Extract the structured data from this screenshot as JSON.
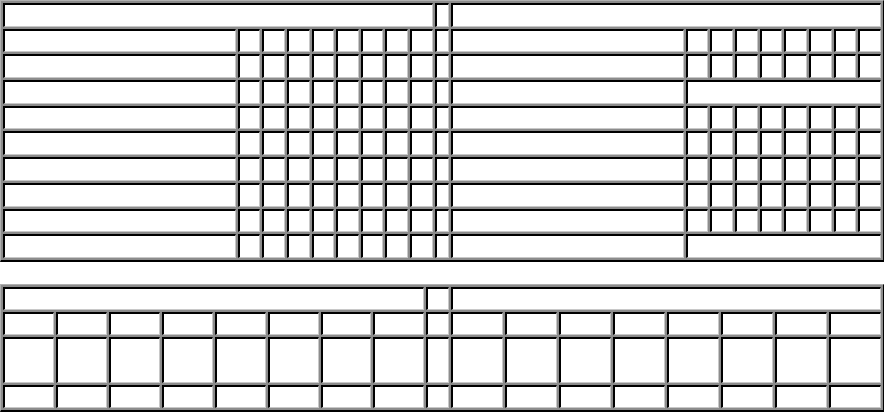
{
  "top_table": {
    "header": [
      "",
      "",
      ""
    ],
    "rows": [
      {
        "left_name": "",
        "left_cells": [
          "",
          "",
          "",
          "",
          "",
          "",
          "",
          ""
        ],
        "right_name": "",
        "right_cells": [
          "",
          "",
          "",
          "",
          "",
          "",
          "",
          ""
        ]
      },
      {
        "left_name": "",
        "left_cells": [
          "",
          "",
          "",
          "",
          "",
          "",
          "",
          ""
        ],
        "right_name": "",
        "right_cells": [
          "",
          "",
          "",
          "",
          "",
          "",
          "",
          ""
        ]
      },
      {
        "left_name": "",
        "left_cells": [
          "",
          "",
          "",
          "",
          "",
          "",
          "",
          ""
        ],
        "right_name": "",
        "right_merged": ""
      },
      {
        "left_name": "",
        "left_cells": [
          "",
          "",
          "",
          "",
          "",
          "",
          "",
          ""
        ],
        "right_name": "",
        "right_cells": [
          "",
          "",
          "",
          "",
          "",
          "",
          "",
          ""
        ]
      },
      {
        "left_name": "",
        "left_cells": [
          "",
          "",
          "",
          "",
          "",
          "",
          "",
          ""
        ],
        "right_name": "",
        "right_cells": [
          "",
          "",
          "",
          "",
          "",
          "",
          "",
          ""
        ]
      },
      {
        "left_name": "",
        "left_cells": [
          "",
          "",
          "",
          "",
          "",
          "",
          "",
          ""
        ],
        "right_name": "",
        "right_cells": [
          "",
          "",
          "",
          "",
          "",
          "",
          "",
          ""
        ]
      },
      {
        "left_name": "",
        "left_cells": [
          "",
          "",
          "",
          "",
          "",
          "",
          "",
          ""
        ],
        "right_name": "",
        "right_cells": [
          "",
          "",
          "",
          "",
          "",
          "",
          "",
          ""
        ]
      },
      {
        "left_name": "",
        "left_cells": [
          "",
          "",
          "",
          "",
          "",
          "",
          "",
          ""
        ],
        "right_name": "",
        "right_cells": [
          "",
          "",
          "",
          "",
          "",
          "",
          "",
          ""
        ]
      },
      {
        "left_name": "",
        "left_cells": [
          "",
          "",
          "",
          "",
          "",
          "",
          "",
          ""
        ],
        "right_name": "",
        "right_merged": ""
      }
    ]
  },
  "bottom_table": {
    "header": [
      "",
      "",
      ""
    ],
    "rows": [
      {
        "left_cells": [
          "",
          "",
          "",
          "",
          "",
          "",
          "",
          ""
        ],
        "right_cells": [
          "",
          "",
          "",
          "",
          "",
          "",
          "",
          ""
        ]
      },
      {
        "left_cells": [
          "",
          "",
          "",
          "",
          "",
          "",
          "",
          ""
        ],
        "right_cells": [
          "",
          "",
          "",
          "",
          "",
          "",
          "",
          ""
        ]
      },
      {
        "left_cells": [
          "",
          "",
          "",
          "",
          "",
          "",
          "",
          ""
        ],
        "right_cells": [
          "",
          "",
          "",
          "",
          "",
          "",
          "",
          ""
        ]
      }
    ]
  }
}
